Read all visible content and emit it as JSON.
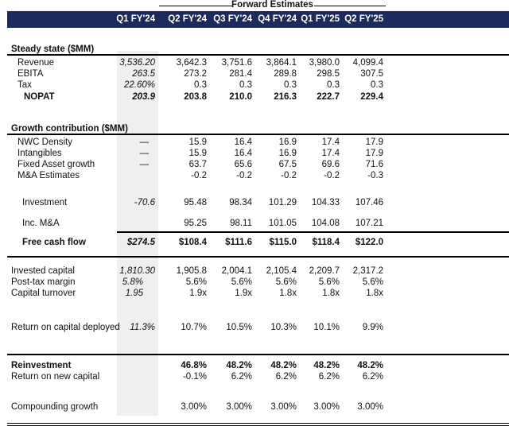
{
  "header": {
    "forward_estimates": "Forward Estimates",
    "columns": [
      "Q1 FY'24",
      "Q2 FY'24",
      "Q3 FY'24",
      "Q4 FY'24",
      "Q1 FY'25",
      "Q2 FY'25"
    ],
    "colors": {
      "header_bg": "#1c2a5c",
      "historical_shade": "#efefef"
    }
  },
  "sections": {
    "steady_state": "Steady state ($MM)",
    "growth_contribution": "Growth contribution ($MM)"
  },
  "rows": [
    {
      "label": "Revenue",
      "values": [
        "3,536.20",
        "3,642.3",
        "3,751.6",
        "3,864.1",
        "3,980.0",
        "4,099.4"
      ]
    },
    {
      "label": "EBITA",
      "values": [
        "263.5",
        "273.2",
        "281.4",
        "289.8",
        "298.5",
        "307.5"
      ]
    },
    {
      "label": "Tax",
      "values": [
        "22.60%",
        "0.3",
        "0.3",
        "0.3",
        "0.3",
        "0.3"
      ]
    },
    {
      "label": "NOPAT",
      "values": [
        "203.9",
        "203.8",
        "210.0",
        "216.3",
        "222.7",
        "229.4"
      ]
    },
    {
      "label": "NWC Density",
      "values": [
        "—",
        "15.9",
        "16.4",
        "16.9",
        "17.4",
        "17.9"
      ]
    },
    {
      "label": "Intangibles",
      "values": [
        "—",
        "15.9",
        "16.4",
        "16.9",
        "17.4",
        "17.9"
      ]
    },
    {
      "label": "Fixed Asset growth",
      "values": [
        "—",
        "63.7",
        "65.6",
        "67.5",
        "69.6",
        "71.6"
      ]
    },
    {
      "label": "M&A Estimates",
      "values": [
        "",
        "-0.2",
        "-0.2",
        "-0.2",
        "-0.2",
        "-0.3"
      ]
    },
    {
      "label": "Investment",
      "values": [
        "-70.6",
        "95.48",
        "98.34",
        "101.29",
        "104.33",
        "107.46"
      ]
    },
    {
      "label": "Inc. M&A",
      "values": [
        "",
        "95.25",
        "98.11",
        "101.05",
        "104.08",
        "107.21"
      ]
    },
    {
      "label": "Free cash flow",
      "values": [
        "$274.5",
        "$108.4",
        "$111.6",
        "$115.0",
        "$118.4",
        "$122.0"
      ]
    },
    {
      "label": "Invested capital",
      "values": [
        "1,810.30",
        "1,905.8",
        "2,004.1",
        "2,105.4",
        "2,209.7",
        "2,317.2"
      ]
    },
    {
      "label": "Post-tax margin",
      "values": [
        "5.8%",
        "5.6%",
        "5.6%",
        "5.6%",
        "5.6%",
        "5.6%"
      ]
    },
    {
      "label": "Capital turnover",
      "values": [
        "1.95",
        "1.9x",
        "1.9x",
        "1.8x",
        "1.8x",
        "1.8x"
      ]
    },
    {
      "label": "Return on capital deployed",
      "values": [
        "11.3%",
        "10.7%",
        "10.5%",
        "10.3%",
        "10.1%",
        "9.9%"
      ]
    },
    {
      "label": "Reinvestment",
      "values": [
        "",
        "46.8%",
        "48.2%",
        "48.2%",
        "48.2%",
        "48.2%"
      ]
    },
    {
      "label": "Return on new capital",
      "values": [
        "",
        "-0.1%",
        "6.2%",
        "6.2%",
        "6.2%",
        "6.2%"
      ]
    },
    {
      "label": "Compounding growth",
      "values": [
        "",
        "3.00%",
        "3.00%",
        "3.00%",
        "3.00%",
        "3.00%"
      ]
    }
  ]
}
